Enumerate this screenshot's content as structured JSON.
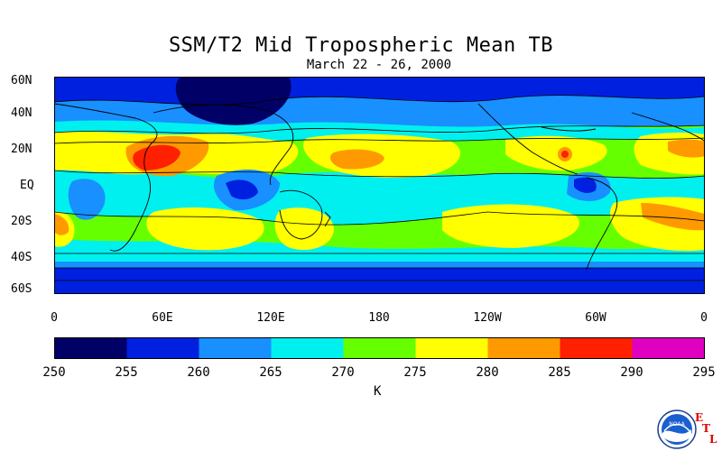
{
  "title": "SSM/T2 Mid Tropospheric Mean TB",
  "subtitle": "March 22 - 26, 2000",
  "lat_labels": [
    "60N",
    "40N",
    "20N",
    "EQ",
    "20S",
    "40S",
    "60S"
  ],
  "lon_labels": [
    "0",
    "60E",
    "120E",
    "180",
    "120W",
    "60W",
    "0"
  ],
  "colorbar": {
    "labels": [
      "250",
      "255",
      "260",
      "265",
      "270",
      "275",
      "280",
      "285",
      "290",
      "295"
    ],
    "colors": [
      "#000066",
      "#0020e0",
      "#1890ff",
      "#00f0f0",
      "#66ff00",
      "#ffff00",
      "#ff9900",
      "#ff2000",
      "#e000c0"
    ],
    "unit": "K"
  },
  "logo": {
    "text": "NOAA",
    "letters": [
      "E",
      "T",
      "L"
    ],
    "icon": "noaa-logo-icon"
  }
}
